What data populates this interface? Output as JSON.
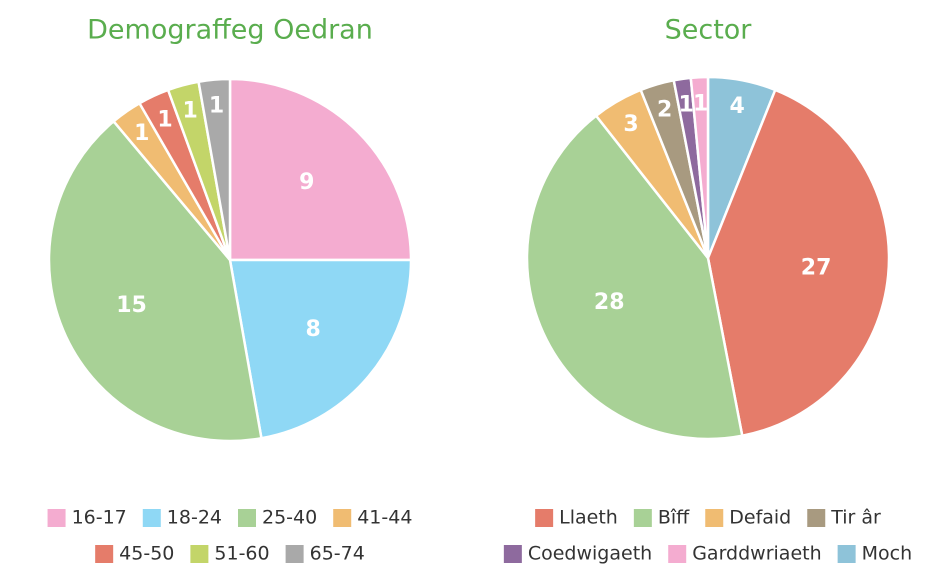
{
  "chart_data": [
    {
      "type": "pie",
      "title": "Demograffeg Oedran",
      "categories": [
        "16-17",
        "18-24",
        "25-40",
        "41-44",
        "45-50",
        "51-60",
        "65-74"
      ],
      "values": [
        9,
        8,
        15,
        1,
        1,
        1,
        1
      ],
      "colors": [
        "#f4acd0",
        "#8fd8f5",
        "#a8d196",
        "#f0bc72",
        "#e57c6a",
        "#c3d569",
        "#a9a9a9"
      ]
    },
    {
      "type": "pie",
      "title": "Sector",
      "categories": [
        "Llaeth",
        "Bîff",
        "Defaid",
        "Tir âr",
        "Coedwigaeth",
        "Garddwriaeth",
        "Moch"
      ],
      "values": [
        27,
        28,
        3,
        2,
        1,
        1,
        4
      ],
      "colors": [
        "#e57c6a",
        "#a8d196",
        "#f0bc72",
        "#a89a80",
        "#8e6a9e",
        "#f4acd0",
        "#8ec3d9"
      ]
    }
  ]
}
